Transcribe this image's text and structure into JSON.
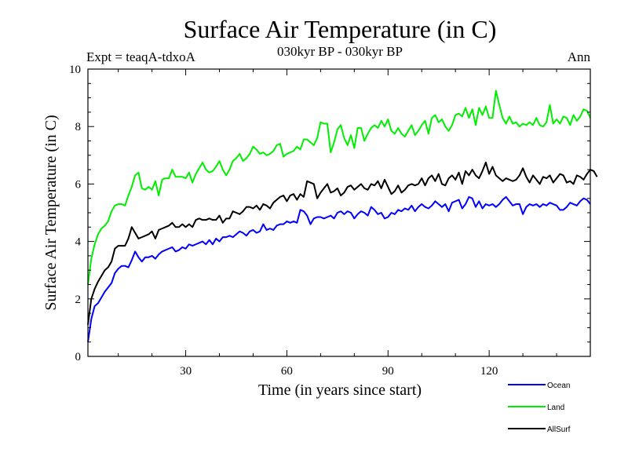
{
  "chart_data": {
    "type": "line",
    "title": "Surface Air Temperature (in C)",
    "subtitle": "030kyr BP - 030kyr BP",
    "experiment": "Expt = teaqA-tdxoA",
    "period": "Ann",
    "xlabel": "Time (in years since start)",
    "ylabel": "Surface Air Temperature (in C)",
    "xlim": [
      1,
      150
    ],
    "ylim": [
      0,
      10
    ],
    "x_ticks": [
      30,
      60,
      90,
      120
    ],
    "y_ticks": [
      0,
      2,
      4,
      6,
      8,
      10
    ],
    "legend": "bottom-right",
    "series": [
      {
        "name": "Ocean",
        "color": "#0000ff",
        "values": [
          0.5,
          1.3,
          1.75,
          1.85,
          2.05,
          2.25,
          2.4,
          2.55,
          2.9,
          3.05,
          3.15,
          3.15,
          3.1,
          3.35,
          3.65,
          3.45,
          3.3,
          3.45,
          3.45,
          3.5,
          3.4,
          3.55,
          3.65,
          3.7,
          3.75,
          3.8,
          3.65,
          3.7,
          3.8,
          3.75,
          3.9,
          3.85,
          3.9,
          3.95,
          4.0,
          3.9,
          4.05,
          3.9,
          4.1,
          4.0,
          4.15,
          4.15,
          4.2,
          4.15,
          4.25,
          4.35,
          4.3,
          4.2,
          4.35,
          4.4,
          4.3,
          4.35,
          4.6,
          4.4,
          4.45,
          4.4,
          4.55,
          4.6,
          4.6,
          4.7,
          4.65,
          4.7,
          4.65,
          5.1,
          5.05,
          4.9,
          4.6,
          4.8,
          4.85,
          4.85,
          4.8,
          4.85,
          4.9,
          4.8,
          5.0,
          5.05,
          4.95,
          5.05,
          5.0,
          4.8,
          4.95,
          5.05,
          5.0,
          4.9,
          5.2,
          5.1,
          4.95,
          5.0,
          4.8,
          4.85,
          5.0,
          4.95,
          5.1,
          5.05,
          5.15,
          5.1,
          5.25,
          5.05,
          5.2,
          5.3,
          5.2,
          5.15,
          5.25,
          5.4,
          5.3,
          5.2,
          5.3,
          5.05,
          5.35,
          5.4,
          5.45,
          5.15,
          5.3,
          5.55,
          5.5,
          5.2,
          5.4,
          5.15,
          5.3,
          5.25,
          5.3,
          5.2,
          5.3,
          5.45,
          5.55,
          5.4,
          5.25,
          5.3,
          5.3,
          4.95,
          5.2,
          5.3,
          5.25,
          5.3,
          5.2,
          5.3,
          5.25,
          5.35,
          5.3,
          5.25,
          5.1,
          5.1,
          5.2,
          5.35,
          5.3,
          5.25,
          5.4,
          5.5,
          5.45,
          5.3
        ]
      },
      {
        "name": "Land",
        "color": "#00ee00",
        "values": [
          2.5,
          3.4,
          3.9,
          4.25,
          4.45,
          4.55,
          4.7,
          5.05,
          5.25,
          5.3,
          5.3,
          5.25,
          5.6,
          5.9,
          6.3,
          6.4,
          5.85,
          5.8,
          5.9,
          5.8,
          6.1,
          5.6,
          6.15,
          6.2,
          6.2,
          6.5,
          6.25,
          6.25,
          6.25,
          6.2,
          6.4,
          6.05,
          6.35,
          6.55,
          6.75,
          6.5,
          6.4,
          6.45,
          6.6,
          6.8,
          6.5,
          6.3,
          6.5,
          6.8,
          6.9,
          7.05,
          6.8,
          6.9,
          7.05,
          7.3,
          7.2,
          7.05,
          7.1,
          7.0,
          7.05,
          7.15,
          7.35,
          7.4,
          6.95,
          7.05,
          7.1,
          7.15,
          7.3,
          7.2,
          7.55,
          7.55,
          7.45,
          7.35,
          7.6,
          8.15,
          8.1,
          8.1,
          7.1,
          7.45,
          7.9,
          8.05,
          7.6,
          7.35,
          7.7,
          7.25,
          7.95,
          7.95,
          7.5,
          7.75,
          7.95,
          8.05,
          7.95,
          8.2,
          8.0,
          8.25,
          7.85,
          7.75,
          7.95,
          7.75,
          7.65,
          7.85,
          8.05,
          7.7,
          7.85,
          8.05,
          8.2,
          7.75,
          8.3,
          8.4,
          8.15,
          8.25,
          8.0,
          7.85,
          8.05,
          8.4,
          8.45,
          8.35,
          8.65,
          8.3,
          8.6,
          8.05,
          8.65,
          8.4,
          8.7,
          8.3,
          8.3,
          9.25,
          8.75,
          8.3,
          8.1,
          8.35,
          8.1,
          8.15,
          8.0,
          8.1,
          8.05,
          8.15,
          8.05,
          8.3,
          8.05,
          8.0,
          8.15,
          8.75,
          8.1,
          8.25,
          8.1,
          8.35,
          8.3,
          8.05,
          8.4,
          8.2,
          8.35,
          8.6,
          8.55,
          8.3
        ]
      },
      {
        "name": "AllSurf",
        "color": "#000000",
        "values": [
          1.1,
          2.0,
          2.35,
          2.6,
          2.8,
          3.0,
          3.1,
          3.3,
          3.75,
          3.85,
          3.85,
          3.85,
          4.1,
          4.5,
          4.3,
          4.1,
          4.15,
          4.2,
          4.25,
          4.35,
          4.1,
          4.4,
          4.45,
          4.5,
          4.55,
          4.65,
          4.5,
          4.5,
          4.6,
          4.5,
          4.6,
          4.5,
          4.75,
          4.8,
          4.75,
          4.75,
          4.8,
          4.75,
          4.75,
          4.9,
          4.65,
          4.8,
          4.8,
          5.05,
          5.0,
          4.95,
          5.05,
          5.2,
          5.2,
          5.15,
          5.25,
          5.1,
          5.3,
          5.25,
          5.15,
          5.35,
          5.45,
          5.55,
          5.6,
          5.4,
          5.6,
          5.65,
          5.45,
          5.65,
          5.55,
          6.1,
          6.05,
          6.0,
          5.5,
          5.7,
          5.85,
          6.0,
          5.7,
          5.75,
          5.85,
          5.6,
          5.7,
          5.9,
          5.95,
          5.8,
          5.9,
          6.0,
          5.85,
          5.8,
          6.0,
          5.95,
          6.1,
          5.85,
          6.15,
          5.9,
          5.65,
          5.75,
          5.95,
          5.7,
          5.8,
          5.95,
          6.0,
          5.95,
          6.0,
          6.2,
          5.95,
          6.2,
          6.3,
          6.1,
          6.35,
          6.0,
          5.95,
          6.2,
          6.3,
          6.15,
          6.4,
          6.0,
          6.45,
          6.3,
          6.5,
          6.3,
          6.2,
          6.45,
          6.75,
          6.35,
          6.6,
          6.3,
          6.2,
          6.1,
          6.2,
          6.15,
          6.1,
          6.15,
          6.3,
          6.55,
          6.25,
          6.05,
          6.3,
          6.15,
          6.0,
          6.25,
          6.2,
          6.3,
          6.05,
          6.2,
          6.35,
          6.3,
          6.05,
          6.1,
          6.0,
          6.3,
          6.25,
          6.15,
          6.35,
          6.5,
          6.45,
          6.25
        ]
      }
    ]
  }
}
